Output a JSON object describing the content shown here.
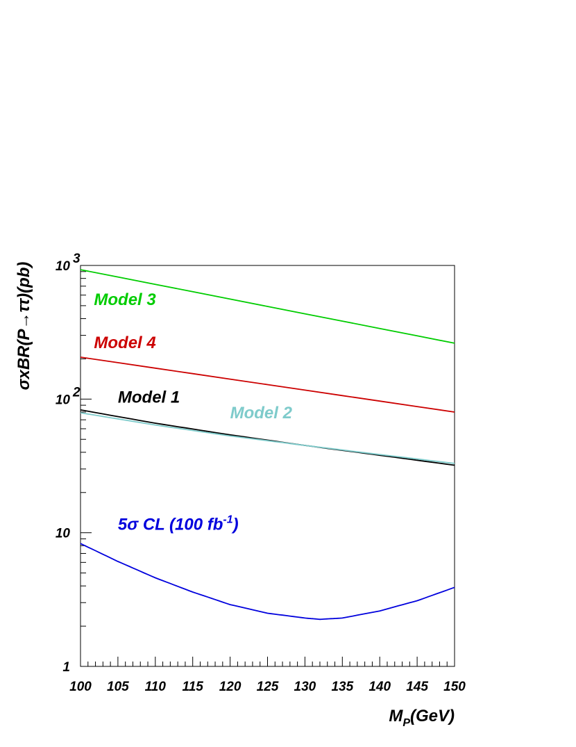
{
  "chart_data": {
    "type": "line",
    "xlabel_main": "M",
    "xlabel_sub": "P",
    "xlabel_rest": "(GeV)",
    "ylabel": "σxBR(P→ττ)(pb)",
    "xlim": [
      100,
      150
    ],
    "ylim": [
      1,
      1000
    ],
    "yscale": "log",
    "grid": false,
    "x_ticks": [
      "100",
      "105",
      "110",
      "115",
      "120",
      "125",
      "130",
      "135",
      "140",
      "145",
      "150"
    ],
    "y_ticks": [
      {
        "value": 1,
        "base": "1",
        "exp": ""
      },
      {
        "value": 10,
        "base": "10",
        "exp": ""
      },
      {
        "value": 100,
        "base": "10",
        "exp": "2"
      },
      {
        "value": 1000,
        "base": "10",
        "exp": "3"
      }
    ],
    "series": [
      {
        "name": "Model 3",
        "color": "#00cc00",
        "x": [
          100,
          150
        ],
        "y": [
          930,
          262
        ]
      },
      {
        "name": "Model 4",
        "color": "#cc0000",
        "x": [
          100,
          150
        ],
        "y": [
          206,
          80
        ]
      },
      {
        "name": "Model 1",
        "color": "#000000",
        "x": [
          100,
          110,
          120,
          130,
          140,
          150
        ],
        "y": [
          83,
          66,
          54,
          45,
          38,
          32
        ]
      },
      {
        "name": "Model 2",
        "color": "#7ecbcb",
        "x": [
          100,
          110,
          120,
          130,
          140,
          150
        ],
        "y": [
          79,
          64,
          53,
          45,
          38.5,
          33
        ]
      },
      {
        "name": "5σ CL (100 fb⁻¹)",
        "label_main": "5σ CL (100 fb",
        "label_sup": "-1",
        "label_end": ")",
        "color": "#0000dd",
        "x": [
          100,
          105,
          110,
          115,
          120,
          125,
          130,
          132,
          135,
          140,
          145,
          150
        ],
        "y": [
          8.3,
          6.1,
          4.6,
          3.6,
          2.9,
          2.5,
          2.3,
          2.25,
          2.3,
          2.6,
          3.1,
          3.9
        ]
      }
    ]
  }
}
